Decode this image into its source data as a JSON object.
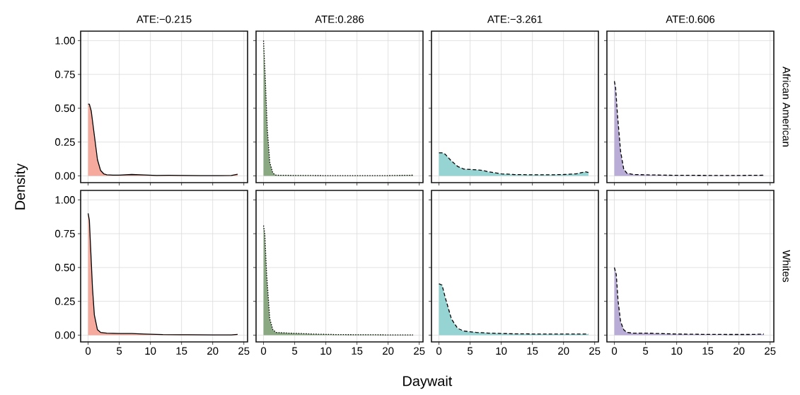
{
  "chart_data": [
    {
      "type": "area",
      "title": "ATE:−0.215",
      "x": [
        0,
        0.2,
        0.5,
        1,
        1.5,
        2,
        2.5,
        3,
        4,
        5,
        7,
        9,
        11,
        13,
        15,
        18,
        21,
        23,
        24
      ],
      "series": [
        {
          "color": "#f6aa9e",
          "line_style": "solid",
          "values": [
            0.53,
            0.53,
            0.48,
            0.3,
            0.12,
            0.04,
            0.015,
            0.008,
            0.005,
            0.005,
            0.01,
            0.007,
            0.003,
            0.004,
            0.003,
            0.002,
            0.002,
            0.003,
            0.012
          ]
        }
      ],
      "xlim": [
        -1.2,
        25.6
      ],
      "ylim": [
        -0.05,
        1.07
      ],
      "xticks": [
        0,
        5,
        10,
        15,
        20,
        25
      ],
      "yticks": [
        {
          "value": 0,
          "label": "0.00"
        },
        {
          "value": 0.25,
          "label": "0.25"
        },
        {
          "value": 0.5,
          "label": "0.50"
        },
        {
          "value": 0.75,
          "label": "0.75"
        },
        {
          "value": 1,
          "label": "1.00"
        }
      ],
      "grid": true,
      "tick_labels": "y"
    },
    {
      "type": "area",
      "title": "ATE:0.286",
      "x": [
        0,
        0.3,
        0.6,
        1,
        1.5,
        2,
        5,
        10,
        15,
        20,
        24
      ],
      "series": [
        {
          "color": "#8aa882",
          "line_style": "dotted",
          "values": [
            1.0,
            0.7,
            0.35,
            0.1,
            0.02,
            0.005,
            0.003,
            0.002,
            0.002,
            0.002,
            0.005
          ]
        }
      ],
      "xlim": [
        -1.2,
        25.6
      ],
      "ylim": [
        -0.05,
        1.07
      ],
      "xticks": [
        0,
        5,
        10,
        15,
        20,
        25
      ],
      "yticks": [
        0,
        0.25,
        0.5,
        0.75,
        1
      ],
      "grid": true,
      "tick_labels": false
    },
    {
      "type": "area",
      "title": "ATE:−3.261",
      "x": [
        0,
        0.5,
        1,
        2,
        3,
        4,
        6,
        7,
        8,
        10,
        12,
        15,
        18,
        20,
        22,
        23.5,
        24
      ],
      "series": [
        {
          "color": "#96d4d4",
          "line_style": "dashed",
          "values": [
            0.17,
            0.17,
            0.16,
            0.11,
            0.07,
            0.05,
            0.045,
            0.04,
            0.03,
            0.015,
            0.01,
            0.008,
            0.008,
            0.01,
            0.015,
            0.03,
            0.025
          ]
        }
      ],
      "xlim": [
        -1.2,
        25.6
      ],
      "ylim": [
        -0.05,
        1.07
      ],
      "xticks": [
        0,
        5,
        10,
        15,
        20,
        25
      ],
      "yticks": [
        0,
        0.25,
        0.5,
        0.75,
        1
      ],
      "grid": true,
      "tick_labels": false
    },
    {
      "type": "area",
      "title": "ATE:0.606",
      "y2label": "African American",
      "x": [
        0,
        0.2,
        0.5,
        1,
        1.5,
        2,
        3,
        5,
        8,
        12,
        16,
        20,
        24
      ],
      "series": [
        {
          "color": "#b9acd6",
          "line_style": "dashed",
          "values": [
            0.7,
            0.65,
            0.45,
            0.18,
            0.05,
            0.02,
            0.01,
            0.008,
            0.005,
            0.004,
            0.003,
            0.003,
            0.005
          ]
        }
      ],
      "xlim": [
        -1.2,
        25.6
      ],
      "ylim": [
        -0.05,
        1.07
      ],
      "xticks": [
        0,
        5,
        10,
        15,
        20,
        25
      ],
      "yticks": [
        0,
        0.25,
        0.5,
        0.75,
        1
      ],
      "grid": true,
      "tick_labels": false
    },
    {
      "type": "area",
      "ylabel": "Density",
      "x": [
        0,
        0.2,
        0.4,
        0.7,
        1,
        1.5,
        2,
        3,
        5,
        7,
        9,
        12,
        16,
        20,
        23,
        24
      ],
      "series": [
        {
          "color": "#f6aa9e",
          "line_style": "solid",
          "values": [
            0.9,
            0.85,
            0.65,
            0.35,
            0.15,
            0.04,
            0.02,
            0.015,
            0.012,
            0.012,
            0.008,
            0.004,
            0.003,
            0.002,
            0.002,
            0.006
          ]
        }
      ],
      "xlim": [
        -1.2,
        25.6
      ],
      "ylim": [
        -0.05,
        1.07
      ],
      "xticks": [
        0,
        5,
        10,
        15,
        20,
        25
      ],
      "yticks": [
        {
          "value": 0,
          "label": "0.00"
        },
        {
          "value": 0.25,
          "label": "0.25"
        },
        {
          "value": 0.5,
          "label": "0.50"
        },
        {
          "value": 0.75,
          "label": "0.75"
        },
        {
          "value": 1,
          "label": "1.00"
        }
      ],
      "grid": true
    },
    {
      "type": "area",
      "xlabel": "Daywait",
      "x": [
        0,
        0.2,
        0.5,
        1,
        1.5,
        2,
        4,
        6,
        8,
        12,
        16,
        20,
        24
      ],
      "series": [
        {
          "color": "#8aa882",
          "line_style": "dotted",
          "values": [
            0.81,
            0.75,
            0.45,
            0.12,
            0.04,
            0.02,
            0.015,
            0.012,
            0.008,
            0.004,
            0.003,
            0.002,
            0.002
          ]
        }
      ],
      "xlim": [
        -1.2,
        25.6
      ],
      "ylim": [
        -0.05,
        1.07
      ],
      "xticks": [
        0,
        5,
        10,
        15,
        20,
        25
      ],
      "yticks": [
        0,
        0.25,
        0.5,
        0.75,
        1
      ],
      "grid": true,
      "tick_labels": "x"
    },
    {
      "type": "area",
      "x": [
        0,
        0.5,
        1,
        2,
        3,
        4,
        6,
        8,
        12,
        16,
        20,
        24
      ],
      "series": [
        {
          "color": "#96d4d4",
          "line_style": "dashed",
          "values": [
            0.38,
            0.37,
            0.28,
            0.12,
            0.05,
            0.03,
            0.02,
            0.015,
            0.01,
            0.008,
            0.008,
            0.008
          ]
        }
      ],
      "xlim": [
        -1.2,
        25.6
      ],
      "ylim": [
        -0.05,
        1.07
      ],
      "xticks": [
        0,
        5,
        10,
        15,
        20,
        25
      ],
      "yticks": [
        0,
        0.25,
        0.5,
        0.75,
        1
      ],
      "grid": true,
      "tick_labels": "x"
    },
    {
      "type": "area",
      "y2label": "Whites",
      "x": [
        0,
        0.3,
        0.6,
        1,
        1.5,
        2,
        3,
        5,
        7,
        10,
        14,
        18,
        22,
        24
      ],
      "series": [
        {
          "color": "#b9acd6",
          "line_style": "dashed",
          "values": [
            0.5,
            0.45,
            0.25,
            0.1,
            0.04,
            0.02,
            0.015,
            0.015,
            0.012,
            0.008,
            0.006,
            0.005,
            0.005,
            0.008
          ]
        }
      ],
      "xlim": [
        -1.2,
        25.6
      ],
      "ylim": [
        -0.05,
        1.07
      ],
      "xticks": [
        0,
        5,
        10,
        15,
        20,
        25
      ],
      "yticks": [
        0,
        0.25,
        0.5,
        0.75,
        1
      ],
      "grid": true,
      "tick_labels": "x"
    }
  ]
}
